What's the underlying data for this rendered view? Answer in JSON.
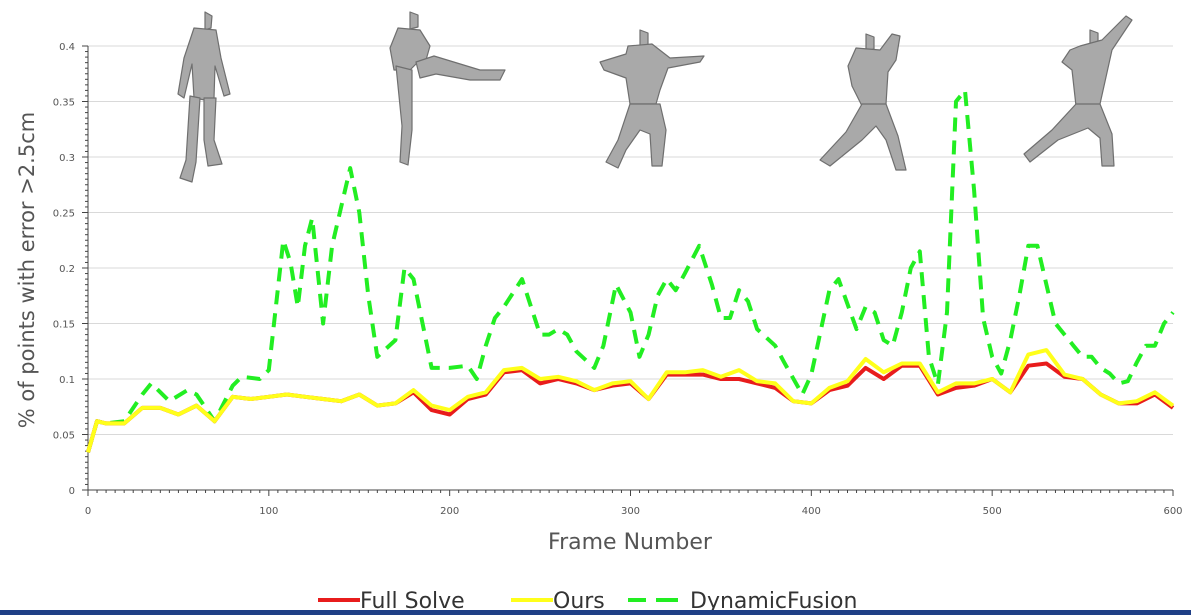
{
  "chart_data": {
    "type": "line",
    "title": "",
    "xlabel": "Frame Number",
    "ylabel": "% of points with error >2.5cm",
    "xlim": [
      0,
      600
    ],
    "ylim": [
      0,
      0.4
    ],
    "x_ticks": [
      0,
      100,
      200,
      300,
      400,
      500,
      600
    ],
    "x_tick_labels": [
      "0",
      "100",
      "200",
      "300",
      "400",
      "500",
      "600"
    ],
    "y_ticks": [
      0,
      0.05,
      0.1,
      0.15,
      0.2,
      0.25,
      0.3,
      0.35,
      0.4
    ],
    "y_tick_labels": [
      "0",
      "0.05",
      "0.1",
      "0.15",
      "0.2",
      "0.25",
      "0.3",
      "0.35",
      "0.4"
    ],
    "grid": "horizontal",
    "legend_position": "bottom-center",
    "series": [
      {
        "name": "Full Solve",
        "color": "#e81c1c",
        "style": "solid",
        "points": [
          [
            0,
            0.034
          ],
          [
            5,
            0.062
          ],
          [
            10,
            0.06
          ],
          [
            20,
            0.06
          ],
          [
            30,
            0.074
          ],
          [
            40,
            0.074
          ],
          [
            50,
            0.068
          ],
          [
            60,
            0.076
          ],
          [
            70,
            0.062
          ],
          [
            80,
            0.084
          ],
          [
            90,
            0.082
          ],
          [
            100,
            0.084
          ],
          [
            110,
            0.086
          ],
          [
            120,
            0.084
          ],
          [
            130,
            0.082
          ],
          [
            140,
            0.08
          ],
          [
            150,
            0.086
          ],
          [
            160,
            0.076
          ],
          [
            170,
            0.078
          ],
          [
            180,
            0.088
          ],
          [
            190,
            0.072
          ],
          [
            200,
            0.068
          ],
          [
            210,
            0.082
          ],
          [
            220,
            0.086
          ],
          [
            230,
            0.106
          ],
          [
            240,
            0.108
          ],
          [
            250,
            0.096
          ],
          [
            260,
            0.1
          ],
          [
            270,
            0.096
          ],
          [
            280,
            0.09
          ],
          [
            290,
            0.094
          ],
          [
            300,
            0.096
          ],
          [
            310,
            0.082
          ],
          [
            320,
            0.104
          ],
          [
            330,
            0.104
          ],
          [
            340,
            0.104
          ],
          [
            350,
            0.1
          ],
          [
            360,
            0.1
          ],
          [
            370,
            0.096
          ],
          [
            380,
            0.092
          ],
          [
            390,
            0.08
          ],
          [
            400,
            0.078
          ],
          [
            410,
            0.09
          ],
          [
            420,
            0.094
          ],
          [
            430,
            0.11
          ],
          [
            440,
            0.1
          ],
          [
            450,
            0.112
          ],
          [
            460,
            0.112
          ],
          [
            470,
            0.086
          ],
          [
            480,
            0.092
          ],
          [
            490,
            0.094
          ],
          [
            500,
            0.1
          ],
          [
            510,
            0.088
          ],
          [
            520,
            0.112
          ],
          [
            530,
            0.114
          ],
          [
            540,
            0.102
          ],
          [
            550,
            0.1
          ],
          [
            560,
            0.086
          ],
          [
            570,
            0.078
          ],
          [
            580,
            0.078
          ],
          [
            590,
            0.086
          ],
          [
            600,
            0.074
          ]
        ]
      },
      {
        "name": "Ours",
        "color": "#ffff1a",
        "style": "solid",
        "points": [
          [
            0,
            0.034
          ],
          [
            5,
            0.062
          ],
          [
            10,
            0.06
          ],
          [
            20,
            0.06
          ],
          [
            30,
            0.074
          ],
          [
            40,
            0.074
          ],
          [
            50,
            0.068
          ],
          [
            60,
            0.076
          ],
          [
            70,
            0.062
          ],
          [
            80,
            0.084
          ],
          [
            90,
            0.082
          ],
          [
            100,
            0.084
          ],
          [
            110,
            0.086
          ],
          [
            120,
            0.084
          ],
          [
            130,
            0.082
          ],
          [
            140,
            0.08
          ],
          [
            150,
            0.086
          ],
          [
            160,
            0.076
          ],
          [
            170,
            0.078
          ],
          [
            180,
            0.09
          ],
          [
            190,
            0.076
          ],
          [
            200,
            0.072
          ],
          [
            210,
            0.084
          ],
          [
            220,
            0.088
          ],
          [
            230,
            0.108
          ],
          [
            240,
            0.11
          ],
          [
            250,
            0.1
          ],
          [
            260,
            0.102
          ],
          [
            270,
            0.098
          ],
          [
            280,
            0.09
          ],
          [
            290,
            0.096
          ],
          [
            300,
            0.098
          ],
          [
            310,
            0.082
          ],
          [
            320,
            0.106
          ],
          [
            330,
            0.106
          ],
          [
            340,
            0.108
          ],
          [
            350,
            0.102
          ],
          [
            360,
            0.108
          ],
          [
            370,
            0.098
          ],
          [
            380,
            0.096
          ],
          [
            390,
            0.08
          ],
          [
            400,
            0.078
          ],
          [
            410,
            0.092
          ],
          [
            420,
            0.098
          ],
          [
            430,
            0.118
          ],
          [
            440,
            0.106
          ],
          [
            450,
            0.114
          ],
          [
            460,
            0.114
          ],
          [
            470,
            0.088
          ],
          [
            480,
            0.096
          ],
          [
            490,
            0.096
          ],
          [
            500,
            0.1
          ],
          [
            510,
            0.088
          ],
          [
            520,
            0.122
          ],
          [
            530,
            0.126
          ],
          [
            540,
            0.104
          ],
          [
            550,
            0.1
          ],
          [
            560,
            0.086
          ],
          [
            570,
            0.078
          ],
          [
            580,
            0.08
          ],
          [
            590,
            0.088
          ],
          [
            600,
            0.076
          ]
        ]
      },
      {
        "name": "DynamicFusion",
        "color": "#22ee22",
        "style": "dashed",
        "points": [
          [
            0,
            0.034
          ],
          [
            5,
            0.062
          ],
          [
            10,
            0.06
          ],
          [
            20,
            0.062
          ],
          [
            30,
            0.086
          ],
          [
            35,
            0.096
          ],
          [
            45,
            0.08
          ],
          [
            55,
            0.09
          ],
          [
            60,
            0.086
          ],
          [
            70,
            0.062
          ],
          [
            80,
            0.094
          ],
          [
            85,
            0.102
          ],
          [
            95,
            0.1
          ],
          [
            100,
            0.108
          ],
          [
            108,
            0.225
          ],
          [
            112,
            0.205
          ],
          [
            116,
            0.165
          ],
          [
            120,
            0.22
          ],
          [
            124,
            0.245
          ],
          [
            130,
            0.15
          ],
          [
            135,
            0.22
          ],
          [
            145,
            0.29
          ],
          [
            150,
            0.25
          ],
          [
            155,
            0.175
          ],
          [
            160,
            0.12
          ],
          [
            170,
            0.135
          ],
          [
            175,
            0.2
          ],
          [
            180,
            0.19
          ],
          [
            190,
            0.11
          ],
          [
            200,
            0.11
          ],
          [
            210,
            0.112
          ],
          [
            215,
            0.1
          ],
          [
            220,
            0.13
          ],
          [
            225,
            0.155
          ],
          [
            230,
            0.165
          ],
          [
            240,
            0.19
          ],
          [
            250,
            0.14
          ],
          [
            255,
            0.14
          ],
          [
            260,
            0.145
          ],
          [
            265,
            0.14
          ],
          [
            270,
            0.125
          ],
          [
            280,
            0.11
          ],
          [
            285,
            0.13
          ],
          [
            292,
            0.185
          ],
          [
            300,
            0.16
          ],
          [
            305,
            0.12
          ],
          [
            310,
            0.14
          ],
          [
            315,
            0.175
          ],
          [
            320,
            0.19
          ],
          [
            325,
            0.18
          ],
          [
            330,
            0.195
          ],
          [
            338,
            0.22
          ],
          [
            345,
            0.185
          ],
          [
            350,
            0.155
          ],
          [
            355,
            0.155
          ],
          [
            360,
            0.18
          ],
          [
            365,
            0.17
          ],
          [
            370,
            0.145
          ],
          [
            380,
            0.13
          ],
          [
            385,
            0.115
          ],
          [
            395,
            0.086
          ],
          [
            400,
            0.104
          ],
          [
            410,
            0.18
          ],
          [
            415,
            0.19
          ],
          [
            425,
            0.145
          ],
          [
            430,
            0.165
          ],
          [
            435,
            0.16
          ],
          [
            440,
            0.135
          ],
          [
            445,
            0.13
          ],
          [
            450,
            0.16
          ],
          [
            455,
            0.2
          ],
          [
            460,
            0.215
          ],
          [
            465,
            0.12
          ],
          [
            470,
            0.095
          ],
          [
            475,
            0.16
          ],
          [
            480,
            0.35
          ],
          [
            485,
            0.36
          ],
          [
            490,
            0.27
          ],
          [
            495,
            0.155
          ],
          [
            500,
            0.12
          ],
          [
            505,
            0.105
          ],
          [
            510,
            0.135
          ],
          [
            515,
            0.175
          ],
          [
            520,
            0.22
          ],
          [
            525,
            0.22
          ],
          [
            530,
            0.185
          ],
          [
            535,
            0.15
          ],
          [
            540,
            0.14
          ],
          [
            545,
            0.13
          ],
          [
            550,
            0.12
          ],
          [
            555,
            0.12
          ],
          [
            560,
            0.11
          ],
          [
            565,
            0.105
          ],
          [
            570,
            0.096
          ],
          [
            575,
            0.098
          ],
          [
            580,
            0.115
          ],
          [
            585,
            0.13
          ],
          [
            590,
            0.13
          ],
          [
            595,
            0.15
          ],
          [
            600,
            0.16
          ]
        ]
      }
    ]
  }
}
